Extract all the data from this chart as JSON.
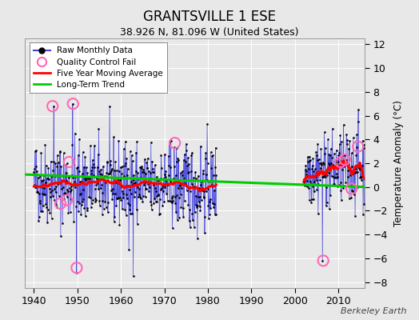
{
  "title": "GRANTSVILLE 1 ESE",
  "subtitle": "38.926 N, 81.096 W (United States)",
  "ylabel": "Temperature Anomaly (°C)",
  "watermark": "Berkeley Earth",
  "xlim": [
    1938,
    2016
  ],
  "ylim": [
    -8.5,
    12.5
  ],
  "yticks": [
    -8,
    -6,
    -4,
    -2,
    0,
    2,
    4,
    6,
    8,
    10,
    12
  ],
  "xticks": [
    1940,
    1950,
    1960,
    1970,
    1980,
    1990,
    2000,
    2010
  ],
  "background_color": "#e8e8e8",
  "plot_bg_color": "#e8e8e8",
  "grid_color": "#ffffff",
  "raw_line_color": "#4444dd",
  "raw_dot_color": "#000000",
  "qc_fail_color": "#ff69b4",
  "moving_avg_color": "#ff0000",
  "trend_color": "#00cc00",
  "seed": 42
}
